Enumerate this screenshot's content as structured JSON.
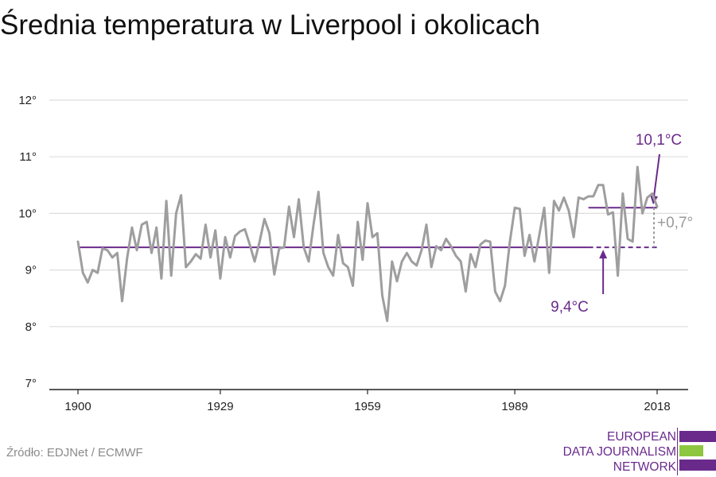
{
  "title": "Średnia temperatura w Liverpool i okolicach",
  "source": "Źródło: EDJNet / ECMWF",
  "logo": {
    "line1": "EUROPEAN",
    "line2": "DATA JOURNALISM",
    "line3": "NETWORK"
  },
  "colors": {
    "series": "#9e9e9e",
    "purple": "#6a2a8c",
    "grey_annotation": "#9a9a9a",
    "grid": "#dddddd",
    "logo_green": "#8dc63f"
  },
  "chart_data": {
    "type": "line",
    "title": "Średnia temperatura w Liverpool i okolicach",
    "xlabel": "",
    "ylabel": "",
    "xlim": [
      1900,
      2018
    ],
    "ylim": [
      7,
      12
    ],
    "grid": true,
    "x_ticks": [
      1900,
      1929,
      1959,
      1989,
      2018
    ],
    "y_ticks": [
      {
        "value": 7,
        "label": "7°"
      },
      {
        "value": 8,
        "label": "8°"
      },
      {
        "value": 9,
        "label": "9°"
      },
      {
        "value": 10,
        "label": "10°"
      },
      {
        "value": 11,
        "label": "11°"
      },
      {
        "value": 12,
        "label": "12°"
      }
    ],
    "x": [
      1900,
      1901,
      1902,
      1903,
      1904,
      1905,
      1906,
      1907,
      1908,
      1909,
      1910,
      1911,
      1912,
      1913,
      1914,
      1915,
      1916,
      1917,
      1918,
      1919,
      1920,
      1921,
      1922,
      1923,
      1924,
      1925,
      1926,
      1927,
      1928,
      1929,
      1930,
      1931,
      1932,
      1933,
      1934,
      1935,
      1936,
      1937,
      1938,
      1939,
      1940,
      1941,
      1942,
      1943,
      1944,
      1945,
      1946,
      1947,
      1948,
      1949,
      1950,
      1951,
      1952,
      1953,
      1954,
      1955,
      1956,
      1957,
      1958,
      1959,
      1960,
      1961,
      1962,
      1963,
      1964,
      1965,
      1966,
      1967,
      1968,
      1969,
      1970,
      1971,
      1972,
      1973,
      1974,
      1975,
      1976,
      1977,
      1978,
      1979,
      1980,
      1981,
      1982,
      1983,
      1984,
      1985,
      1986,
      1987,
      1988,
      1989,
      1990,
      1991,
      1992,
      1993,
      1994,
      1995,
      1996,
      1997,
      1998,
      1999,
      2000,
      2001,
      2002,
      2003,
      2004,
      2005,
      2006,
      2007,
      2008,
      2009,
      2010,
      2011,
      2012,
      2013,
      2014,
      2015,
      2016,
      2017,
      2018
    ],
    "series": [
      {
        "values": [
          9.5,
          8.95,
          8.78,
          9.0,
          8.95,
          9.38,
          9.35,
          9.22,
          9.3,
          8.45,
          9.2,
          9.75,
          9.35,
          9.8,
          9.85,
          9.3,
          9.75,
          8.85,
          10.22,
          8.9,
          10.0,
          10.32,
          9.05,
          9.15,
          9.28,
          9.2,
          9.8,
          9.22,
          9.7,
          8.85,
          9.58,
          9.22,
          9.6,
          9.68,
          9.72,
          9.45,
          9.15,
          9.5,
          9.9,
          9.65,
          8.92,
          9.38,
          9.4,
          10.12,
          9.58,
          10.25,
          9.4,
          9.15,
          9.8,
          10.38,
          9.3,
          9.05,
          8.9,
          9.62,
          9.12,
          9.05,
          8.72,
          9.85,
          9.18,
          10.18,
          9.58,
          9.65,
          8.55,
          8.1,
          9.15,
          8.8,
          9.15,
          9.3,
          9.15,
          9.08,
          9.35,
          9.8,
          9.05,
          9.42,
          9.35,
          9.55,
          9.42,
          9.25,
          9.15,
          8.62,
          9.28,
          9.05,
          9.45,
          9.52,
          9.5,
          8.62,
          8.45,
          8.72,
          9.5,
          10.1,
          10.08,
          9.25,
          9.62,
          9.15,
          9.62,
          10.1,
          8.95,
          10.22,
          10.05,
          10.28,
          10.05,
          9.58,
          10.28,
          10.25,
          10.3,
          10.3,
          10.5,
          10.5,
          9.98,
          10.02,
          8.9,
          10.35,
          9.55,
          9.5,
          10.82,
          10.0,
          10.28,
          10.35,
          10.12
        ]
      }
    ],
    "annotations": {
      "baseline": {
        "value": 9.4,
        "label": "9,4°C",
        "x_start": 1900,
        "x_end": 2018,
        "dashed_from": 2004
      },
      "recent": {
        "value": 10.1,
        "label": "10,1°C",
        "x_start": 2004,
        "x_end": 2018
      },
      "difference": {
        "label": "+0,7°"
      }
    }
  }
}
